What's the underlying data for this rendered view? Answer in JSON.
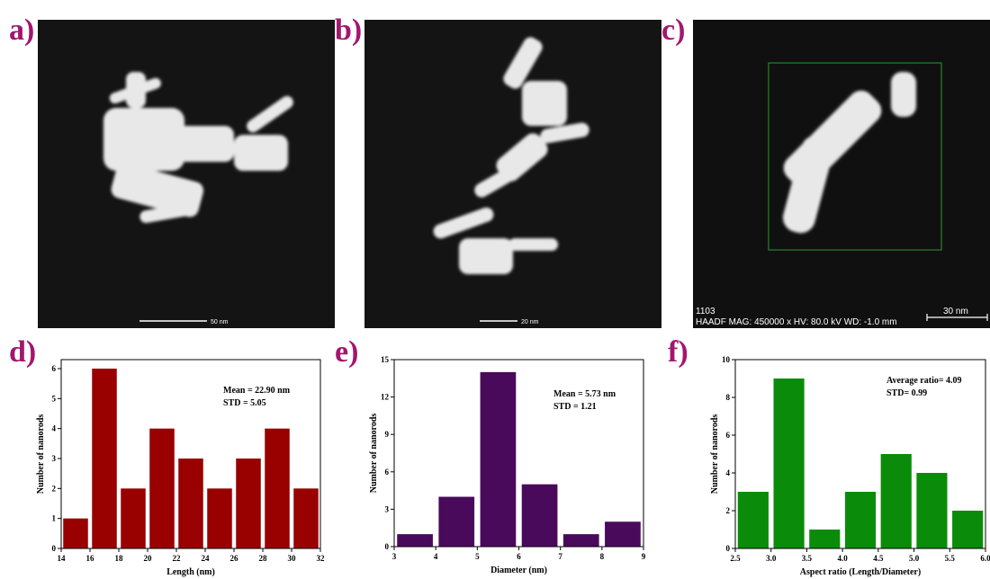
{
  "panels": [
    {
      "label": "a)",
      "scale_bar": "50 nm"
    },
    {
      "label": "b)",
      "scale_bar": "20 nm"
    },
    {
      "label": "c)",
      "scale_bar": "30 nm",
      "image_id": "1103",
      "info": "HAADF  MAG: 450000 x  HV: 80.0 kV  WD: -1.0 mm"
    }
  ],
  "chart_data": [
    {
      "type": "histogram",
      "label": "d)",
      "xlabel": "Length (nm)",
      "ylabel": "Number of nanorods",
      "bins": [
        14,
        16,
        18,
        20,
        22,
        24,
        26,
        28,
        30,
        32
      ],
      "values": [
        1,
        6,
        2,
        4,
        3,
        2,
        3,
        4,
        2
      ],
      "color": "#990000",
      "xlim": [
        14,
        32
      ],
      "ylim": [
        0,
        6.3
      ],
      "xticks": [
        14,
        16,
        18,
        20,
        22,
        24,
        26,
        28,
        30,
        32
      ],
      "yticks": [
        0,
        1,
        2,
        3,
        4,
        5,
        6
      ],
      "annotations": [
        "Mean = 22.90 nm",
        "STD = 5.05"
      ]
    },
    {
      "type": "histogram",
      "label": "e)",
      "xlabel": "Diameter (nm)",
      "ylabel": "Number of nanorods",
      "bins": [
        3,
        4,
        5,
        6,
        7,
        8,
        9
      ],
      "values": [
        1,
        4,
        14,
        5,
        1,
        2
      ],
      "color": "#4a0a5c",
      "xlim": [
        3,
        9
      ],
      "ylim": [
        0,
        15
      ],
      "xticks": [
        3,
        4,
        5,
        6,
        7,
        8,
        9
      ],
      "yticks": [
        0,
        3,
        6,
        9,
        12,
        15
      ],
      "annotations": [
        "Mean = 5.73 nm",
        "STD = 1.21"
      ]
    },
    {
      "type": "histogram",
      "label": "f)",
      "xlabel": "Aspect ratio (Length/Diameter)",
      "ylabel": "Number of nanorods",
      "bins": [
        2.5,
        3,
        3.5,
        4,
        4.5,
        5,
        5.5,
        6
      ],
      "values": [
        3,
        9,
        1,
        3,
        5,
        4,
        2
      ],
      "color": "#0a8c0a",
      "xlim": [
        2.5,
        6
      ],
      "ylim": [
        0,
        10
      ],
      "xticks": [
        2.5,
        {
          "value": 3,
          "label": "3.0"
        },
        3.5,
        {
          "value": 4,
          "label": "4.0"
        },
        4.5,
        {
          "value": 5,
          "label": "5.0"
        },
        5.5,
        {
          "value": 6,
          "label": "6.0"
        }
      ],
      "yticks": [
        0,
        2,
        4,
        6,
        8,
        10
      ],
      "annotations": [
        "Average ratio= 4.09",
        "STD= 0.99"
      ]
    }
  ]
}
